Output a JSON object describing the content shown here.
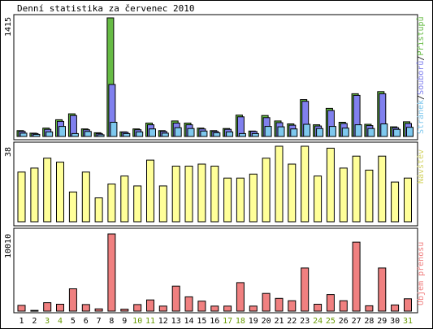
{
  "title": "Denní statistika za červenec 2010",
  "colors": {
    "pristupu": "#66bb44",
    "souboru": "#8080ee",
    "stranek": "#7ec8ee",
    "navstev": "#ffff99",
    "objem": "#f08080",
    "weekday": "#000000",
    "weekend": "#669900"
  },
  "chart_data": [
    {
      "type": "bar",
      "title": "",
      "ylabel": "1415",
      "legend_position": "right",
      "legend_parts": [
        "Stránek",
        "/",
        "Souborů",
        "/",
        "Přístupů"
      ],
      "ylim": [
        0,
        1415
      ],
      "categories": [
        "1",
        "2",
        "3",
        "4",
        "5",
        "6",
        "7",
        "8",
        "9",
        "10",
        "11",
        "12",
        "13",
        "14",
        "15",
        "16",
        "17",
        "18",
        "19",
        "20",
        "21",
        "22",
        "23",
        "24",
        "25",
        "26",
        "27",
        "28",
        "29",
        "30",
        "31"
      ],
      "series": [
        {
          "name": "Přístupů",
          "values": [
            70,
            40,
            100,
            200,
            270,
            90,
            45,
            1415,
            55,
            90,
            160,
            70,
            185,
            160,
            100,
            70,
            95,
            255,
            65,
            250,
            185,
            150,
            440,
            140,
            335,
            170,
            510,
            145,
            535,
            115,
            175
          ]
        },
        {
          "name": "Souborů",
          "values": [
            60,
            35,
            85,
            180,
            250,
            80,
            35,
            620,
            50,
            80,
            140,
            60,
            160,
            140,
            90,
            60,
            85,
            235,
            60,
            225,
            165,
            135,
            420,
            125,
            310,
            155,
            490,
            130,
            510,
            105,
            155
          ]
        },
        {
          "name": "Stránek",
          "values": [
            40,
            25,
            55,
            120,
            35,
            60,
            20,
            170,
            35,
            55,
            90,
            40,
            105,
            95,
            65,
            45,
            55,
            35,
            35,
            120,
            115,
            90,
            145,
            95,
            120,
            100,
            140,
            95,
            150,
            85,
            110
          ]
        }
      ]
    },
    {
      "type": "bar",
      "title": "",
      "ylabel": "38",
      "legend_position": "right",
      "legend_parts": [
        "Návštěv"
      ],
      "ylim": [
        0,
        38
      ],
      "categories": [
        "1",
        "2",
        "3",
        "4",
        "5",
        "6",
        "7",
        "8",
        "9",
        "10",
        "11",
        "12",
        "13",
        "14",
        "15",
        "16",
        "17",
        "18",
        "19",
        "20",
        "21",
        "22",
        "23",
        "24",
        "25",
        "26",
        "27",
        "28",
        "29",
        "30",
        "31"
      ],
      "series": [
        {
          "name": "Návštěv",
          "values": [
            25,
            27,
            32,
            30,
            15,
            25,
            12,
            19,
            23,
            18,
            31,
            18,
            28,
            28,
            29,
            28,
            22,
            22,
            24,
            32,
            38,
            29,
            38,
            23,
            37,
            27,
            33,
            26,
            33,
            20,
            22
          ]
        }
      ]
    },
    {
      "type": "bar",
      "title": "",
      "ylabel": "10010",
      "legend_position": "right",
      "legend_parts": [
        "Objem přenosu"
      ],
      "ylim": [
        0,
        10010
      ],
      "categories": [
        "1",
        "2",
        "3",
        "4",
        "5",
        "6",
        "7",
        "8",
        "9",
        "10",
        "11",
        "12",
        "13",
        "14",
        "15",
        "16",
        "17",
        "18",
        "19",
        "20",
        "21",
        "22",
        "23",
        "24",
        "25",
        "26",
        "27",
        "28",
        "29",
        "30",
        "31"
      ],
      "series": [
        {
          "name": "Objem přenosu",
          "values": [
            750,
            100,
            1100,
            900,
            2900,
            850,
            300,
            10010,
            250,
            850,
            1450,
            650,
            3250,
            1850,
            1300,
            650,
            650,
            3700,
            650,
            2300,
            1650,
            1350,
            5600,
            900,
            2150,
            1350,
            8950,
            700,
            5600,
            800,
            1600
          ]
        }
      ]
    }
  ],
  "x_axis": {
    "labels": [
      "1",
      "2",
      "3",
      "4",
      "5",
      "6",
      "7",
      "8",
      "9",
      "10",
      "11",
      "12",
      "13",
      "14",
      "15",
      "16",
      "17",
      "18",
      "19",
      "20",
      "21",
      "22",
      "23",
      "24",
      "25",
      "26",
      "27",
      "28",
      "29",
      "30",
      "31"
    ],
    "weekend": [
      false,
      false,
      true,
      true,
      false,
      false,
      false,
      false,
      false,
      true,
      true,
      false,
      false,
      false,
      false,
      false,
      true,
      true,
      false,
      false,
      false,
      false,
      false,
      true,
      true,
      false,
      false,
      false,
      false,
      false,
      true
    ]
  }
}
